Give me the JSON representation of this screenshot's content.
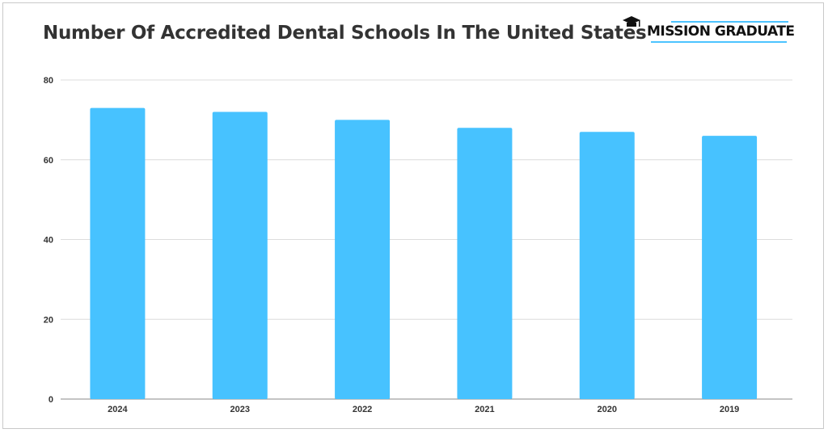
{
  "chart_data": {
    "type": "bar",
    "title": "Number Of Accredited Dental Schools In The United States",
    "categories": [
      "2024",
      "2023",
      "2022",
      "2021",
      "2020",
      "2019"
    ],
    "values": [
      73,
      72,
      70,
      68,
      67,
      66
    ],
    "xlabel": "",
    "ylabel": "",
    "ylim": [
      0,
      80
    ],
    "yticks": [
      0,
      20,
      40,
      60,
      80
    ],
    "grid": true,
    "bar_color": "#47c2ff"
  },
  "logo": {
    "text": "MISSION GRADUATE",
    "icon": "graduation-cap-icon",
    "accent": "#4cc3ff"
  }
}
